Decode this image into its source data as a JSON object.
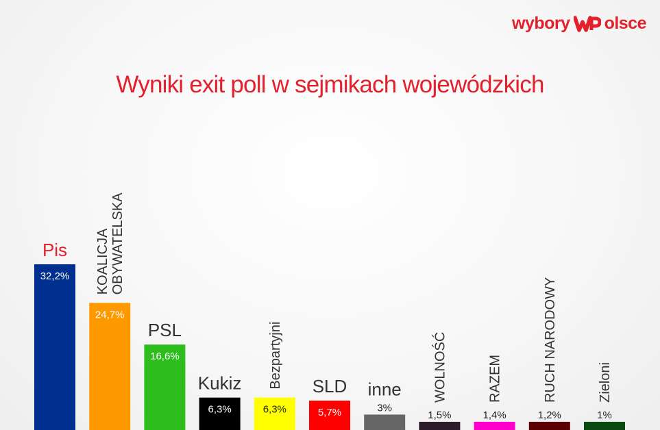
{
  "brand": {
    "text_left": "wybory",
    "text_right": "olsce",
    "color": "#e3202c"
  },
  "chart_data": {
    "type": "bar",
    "title": "Wyniki exit poll w sejmikach wojewódzkich",
    "xlabel": "",
    "ylabel": "",
    "ylim": [
      0,
      32.2
    ],
    "grid": false,
    "legend": "none",
    "bars": [
      {
        "name": "Pis",
        "label_lines": [
          "Pis"
        ],
        "label_style": "horizontal",
        "label_color": "#e3202c",
        "value": 32.2,
        "value_label": "32,2%",
        "value_inside": true,
        "color": "#00308f"
      },
      {
        "name": "KOALICJA OBYWATELSKA",
        "label_lines": [
          "KOALICJA",
          "OBYWATELSKA"
        ],
        "label_style": "vertical",
        "label_color": "#333333",
        "value": 24.7,
        "value_label": "24,7%",
        "value_inside": true,
        "color": "#ff9900"
      },
      {
        "name": "PSL",
        "label_lines": [
          "PSL"
        ],
        "label_style": "horizontal",
        "label_color": "#333333",
        "value": 16.6,
        "value_label": "16,6%",
        "value_inside": true,
        "color": "#2dbe1e"
      },
      {
        "name": "Kukiz",
        "label_lines": [
          "Kukiz"
        ],
        "label_style": "horizontal",
        "label_color": "#333333",
        "value": 6.3,
        "value_label": "6,3%",
        "value_inside": true,
        "color": "#000000"
      },
      {
        "name": "Bezpartyjni",
        "label_lines": [
          "Bezpartyjni"
        ],
        "label_style": "vertical",
        "label_color": "#333333",
        "value": 6.3,
        "value_label": "6,3%",
        "value_inside": true,
        "color": "#ffff00",
        "value_color": "#222222"
      },
      {
        "name": "SLD",
        "label_lines": [
          "SLD"
        ],
        "label_style": "horizontal",
        "label_color": "#333333",
        "value": 5.7,
        "value_label": "5,7%",
        "value_inside": true,
        "color": "#ff0000"
      },
      {
        "name": "inne",
        "label_lines": [
          "inne"
        ],
        "label_style": "horizontal",
        "label_color": "#333333",
        "value": 3,
        "value_label": "3%",
        "value_inside": false,
        "color": "#666666"
      },
      {
        "name": "WOLNOŚĆ",
        "label_lines": [
          "WOLNOŚĆ"
        ],
        "label_style": "vertical",
        "label_color": "#333333",
        "value": 1.5,
        "value_label": "1,5%",
        "value_inside": false,
        "color": "#2b1b2b"
      },
      {
        "name": "RAZEM",
        "label_lines": [
          "RAZEM"
        ],
        "label_style": "vertical",
        "label_color": "#333333",
        "value": 1.4,
        "value_label": "1,4%",
        "value_inside": false,
        "color": "#ff00cc"
      },
      {
        "name": "RUCH NARODOWY",
        "label_lines": [
          "RUCH NARODOWY"
        ],
        "label_style": "vertical",
        "label_color": "#333333",
        "value": 1.2,
        "value_label": "1,2%",
        "value_inside": false,
        "color": "#5a0000"
      },
      {
        "name": "Zieloni",
        "label_lines": [
          "Zieloni"
        ],
        "label_style": "vertical",
        "label_color": "#333333",
        "value": 1,
        "value_label": "1%",
        "value_inside": false,
        "color": "#0a4a10"
      }
    ]
  }
}
